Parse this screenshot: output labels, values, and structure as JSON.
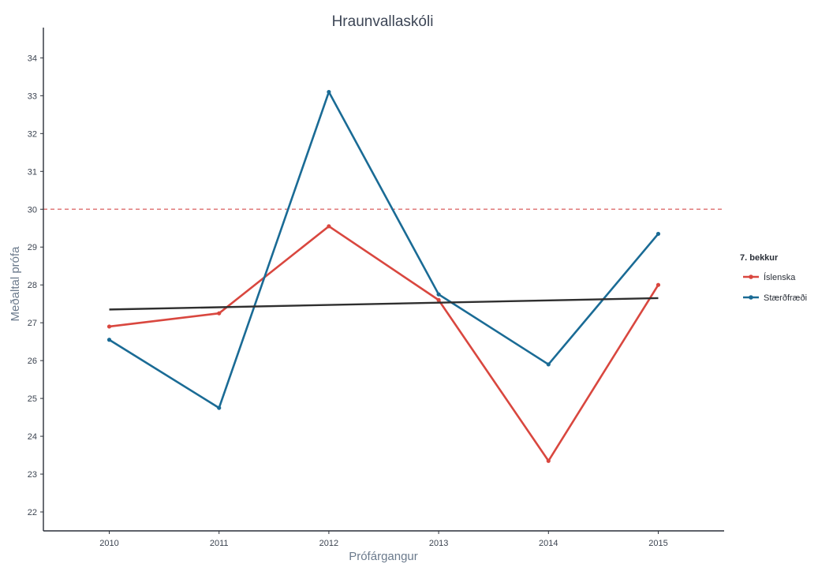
{
  "chart_data": {
    "type": "line",
    "title": "Hraunvallaskóli",
    "xlabel": "Prófárgangur",
    "ylabel": "Meðaltal prófa",
    "x": [
      2010,
      2011,
      2012,
      2013,
      2014,
      2015
    ],
    "xlim": [
      2009.4,
      2015.6
    ],
    "ylim": [
      21.5,
      34.8
    ],
    "yticks": [
      22,
      23,
      24,
      25,
      26,
      27,
      28,
      29,
      30,
      31,
      32,
      33,
      34
    ],
    "legend": {
      "title": "7. bekkur",
      "position": "right"
    },
    "series": [
      {
        "name": "Íslenska",
        "color": "#d9473f",
        "values": [
          26.9,
          27.25,
          29.55,
          27.6,
          23.35,
          28.0
        ]
      },
      {
        "name": "Stærðfræði",
        "color": "#1a6b95",
        "values": [
          26.55,
          24.75,
          33.1,
          27.75,
          25.9,
          29.35
        ]
      }
    ],
    "trend_line": {
      "color": "#2f2f2f",
      "x": [
        2010,
        2015
      ],
      "values": [
        27.35,
        27.65
      ]
    },
    "reference_line": {
      "value": 30,
      "color": "#e07a7a",
      "style": "dashed"
    },
    "grid": false
  }
}
